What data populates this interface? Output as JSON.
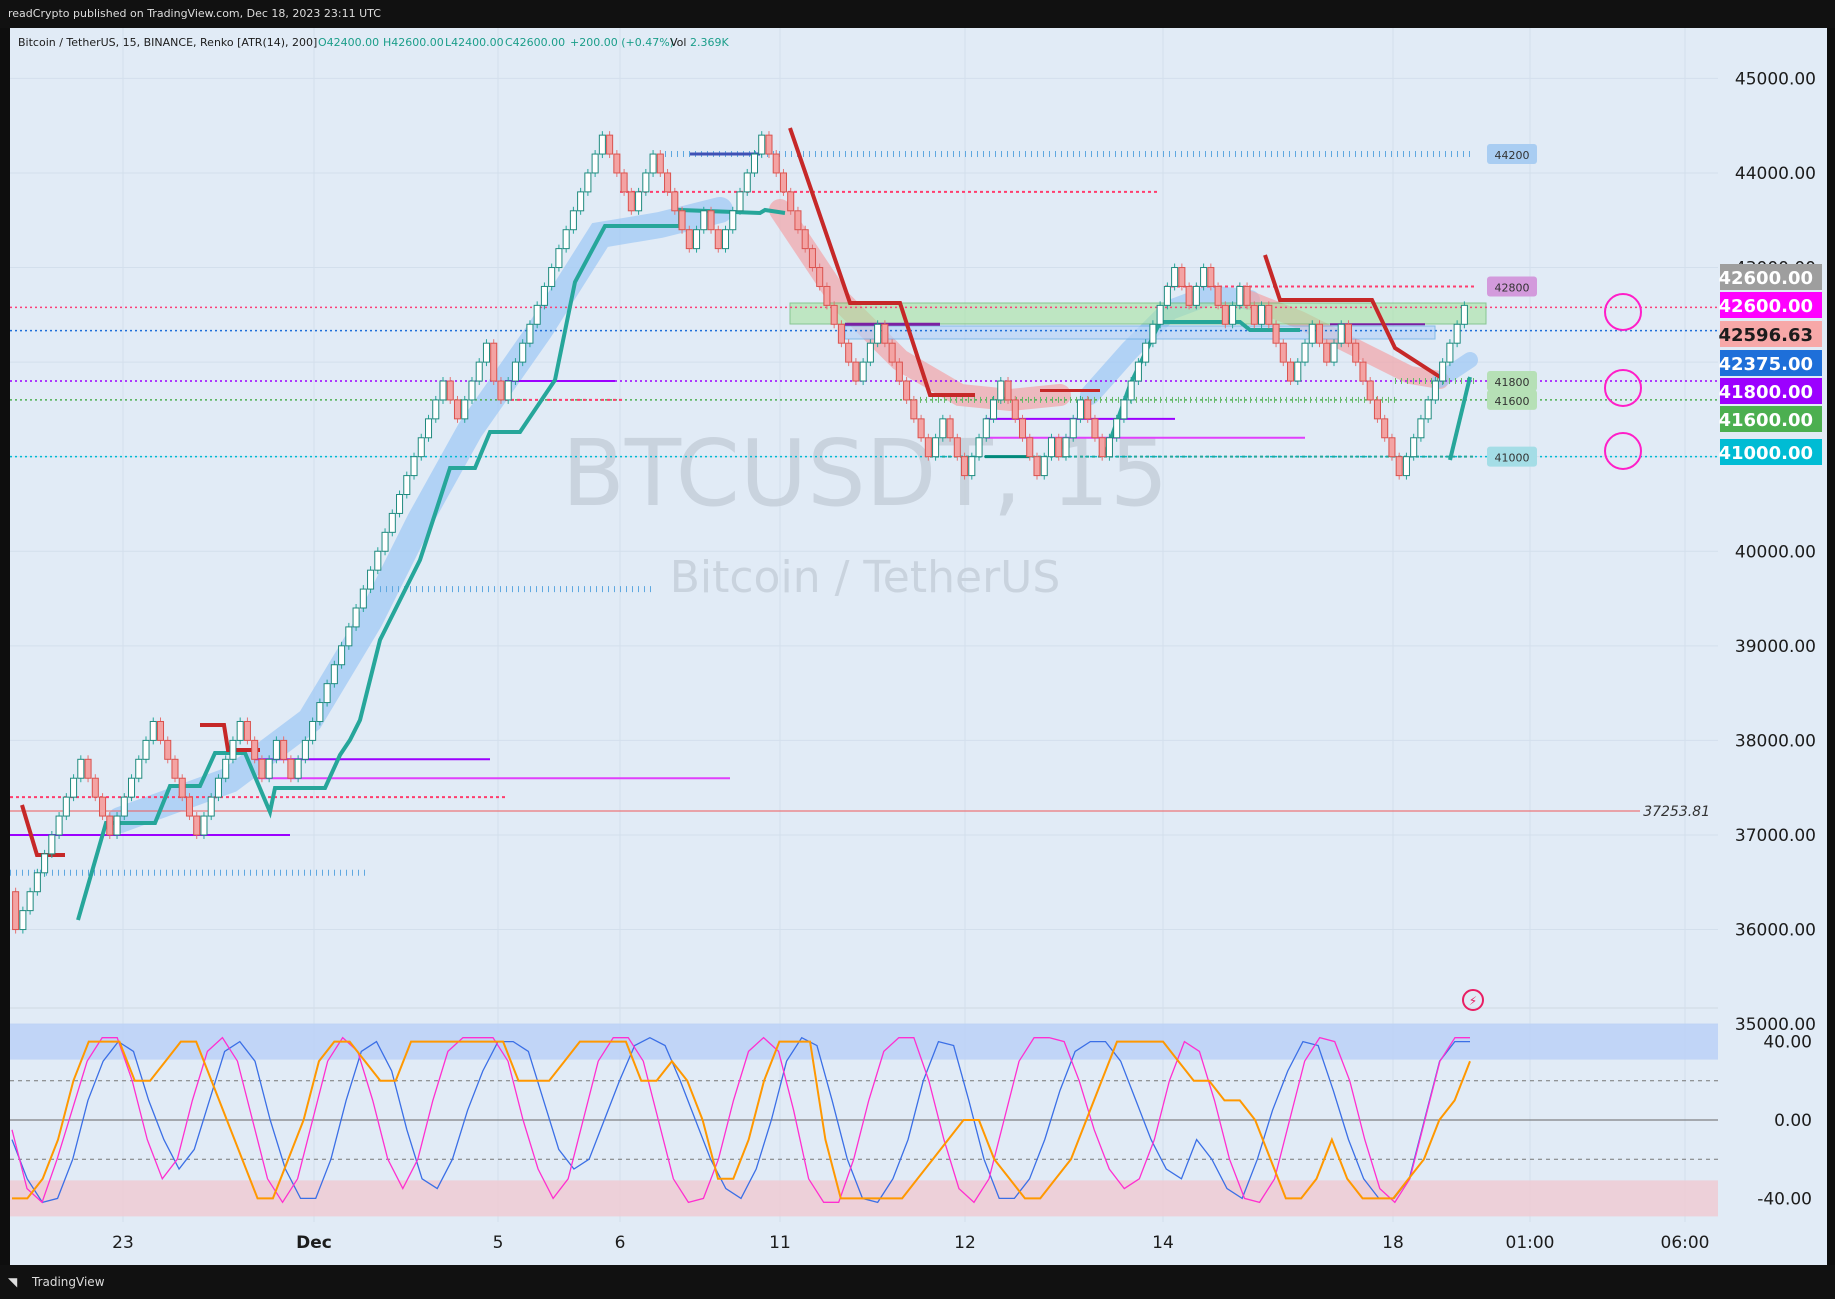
{
  "header": {
    "published": "readCrypto published on TradingView.com, Dec 18, 2023 23:11 UTC"
  },
  "legend": {
    "symbol": "Bitcoin / TetherUS, 15, BINANCE, Renko [ATR(14), 200]",
    "open": "O42400.00",
    "high": "H42600.00",
    "low": "L42400.00",
    "close": "C42600.00",
    "change": "+200.00 (+0.47%)",
    "volume_label": "Vol",
    "volume": "2.369K"
  },
  "watermark": {
    "ticker": "BTCUSDT, 15",
    "name": "Bitcoin / TetherUS"
  },
  "footer": {
    "brand": "TradingView"
  },
  "colors": {
    "up": "#26a69a",
    "down": "#ef5350",
    "bg": "#e1ebf6",
    "blue_level": "#5fa8e0",
    "pink_level": "#ff3d6d",
    "purple": "#9c27b0",
    "magenta": "#e040fb"
  },
  "chart_data": [
    {
      "type": "line",
      "title": "Bitcoin / TetherUS, 15, BINANCE, Renko [ATR(14), 200]",
      "x_ticks": [
        "23",
        "Dec",
        "5",
        "6",
        "11",
        "12",
        "14",
        "18",
        "01:00",
        "06:00"
      ],
      "y_ticks": [
        "35000.00",
        "36000.00",
        "37000.00",
        "38000.00",
        "39000.00",
        "40000.00",
        "41000.00",
        "42000.00",
        "43000.00",
        "44000.00",
        "45000.00"
      ],
      "ylim": [
        34980,
        45480
      ],
      "renko_brick_size": 200,
      "renko_path": [
        36400,
        36000,
        36200,
        36400,
        36600,
        36800,
        37000,
        37200,
        37400,
        37600,
        37800,
        37600,
        37400,
        37200,
        37000,
        37200,
        37400,
        37600,
        37800,
        38000,
        38200,
        38000,
        37800,
        37600,
        37400,
        37200,
        37000,
        37200,
        37400,
        37600,
        37800,
        38000,
        38200,
        38000,
        37800,
        37600,
        37800,
        38000,
        37800,
        37600,
        37800,
        38000,
        38200,
        38400,
        38600,
        38800,
        39000,
        39200,
        39400,
        39600,
        39800,
        40000,
        40200,
        40400,
        40600,
        40800,
        41000,
        41200,
        41400,
        41600,
        41800,
        41600,
        41400,
        41600,
        41800,
        42000,
        42200,
        41800,
        41600,
        41800,
        42000,
        42200,
        42400,
        42600,
        42800,
        43000,
        43200,
        43400,
        43600,
        43800,
        44000,
        44200,
        44400,
        44200,
        44000,
        43800,
        43600,
        43800,
        44000,
        44200,
        44000,
        43800,
        43600,
        43400,
        43200,
        43400,
        43600,
        43400,
        43200,
        43400,
        43600,
        43800,
        44000,
        44200,
        44400,
        44200,
        44000,
        43800,
        43600,
        43400,
        43200,
        43000,
        42800,
        42600,
        42400,
        42200,
        42000,
        41800,
        42000,
        42200,
        42400,
        42200,
        42000,
        41800,
        41600,
        41400,
        41200,
        41000,
        41200,
        41400,
        41200,
        41000,
        40800,
        41000,
        41200,
        41400,
        41600,
        41800,
        41600,
        41400,
        41200,
        41000,
        40800,
        41000,
        41200,
        41000,
        41200,
        41400,
        41600,
        41400,
        41200,
        41000,
        41200,
        41400,
        41600,
        41800,
        42000,
        42200,
        42400,
        42600,
        42800,
        43000,
        42800,
        42600,
        42800,
        43000,
        42800,
        42600,
        42400,
        42600,
        42800,
        42600,
        42400,
        42600,
        42400,
        42200,
        42000,
        41800,
        42000,
        42200,
        42400,
        42200,
        42000,
        42200,
        42400,
        42200,
        42000,
        41800,
        41600,
        41400,
        41200,
        41000,
        40800,
        41000,
        41200,
        41400,
        41600,
        41800,
        42000,
        42200,
        42400,
        42600
      ],
      "horizontal_levels": [
        {
          "price": 44200,
          "label": "44200",
          "style": "dots-blue"
        },
        {
          "price": 42800,
          "label": "42800",
          "style": "plus-pink"
        },
        {
          "price": 41800,
          "label": "41800",
          "style": "dots-green"
        },
        {
          "price": 41600,
          "label": "41600",
          "style": "dots-green"
        },
        {
          "price": 41000,
          "label": "41000",
          "style": "plus-teal"
        },
        {
          "price": 37253.81,
          "label": "37253.81",
          "style": "thin-red"
        }
      ],
      "price_labels": [
        {
          "value": "42600.00",
          "color": "#9e9e9e"
        },
        {
          "value": "42600.00",
          "color": "#ff00ff"
        },
        {
          "value": "42596.63",
          "color": "#f7a8a8"
        },
        {
          "value": "42375.00",
          "color": "#1e6fd9"
        },
        {
          "value": "41800.00",
          "color": "#9c00ff"
        },
        {
          "value": "41600.00",
          "color": "#4caf50"
        },
        {
          "value": "41000.00",
          "color": "#00bcd4"
        }
      ]
    },
    {
      "type": "line",
      "title": "",
      "y_ticks": [
        "40.00",
        "0.00",
        "-40.00"
      ],
      "ylim": [
        -50,
        50
      ],
      "series": [
        {
          "values": [
            -10,
            -30,
            -42,
            -40,
            -20,
            10,
            30,
            40,
            35,
            10,
            -10,
            -25,
            -15,
            10,
            35,
            40,
            30,
            0,
            -25,
            -40,
            -40,
            -20,
            10,
            35,
            40,
            25,
            -5,
            -30,
            -35,
            -20,
            5,
            25,
            40,
            40,
            35,
            10,
            -15,
            -25,
            -20,
            0,
            20,
            38,
            42,
            38,
            20,
            0,
            -20,
            -35,
            -40,
            -25,
            0,
            30,
            42,
            38,
            10,
            -20,
            -40,
            -42,
            -30,
            -10,
            20,
            40,
            38,
            10,
            -20,
            -40,
            -40,
            -30,
            -10,
            15,
            35,
            40,
            40,
            30,
            10,
            -10,
            -25,
            -30,
            -10,
            -20,
            -35,
            -40,
            -20,
            5,
            25,
            40,
            38,
            15,
            -10,
            -30,
            -40,
            -40,
            -30,
            0,
            30,
            40,
            40
          ]
        },
        {
          "values": [
            -5,
            -35,
            -42,
            -20,
            5,
            30,
            42,
            42,
            20,
            -10,
            -30,
            -20,
            10,
            35,
            42,
            30,
            0,
            -30,
            -42,
            -30,
            0,
            30,
            42,
            35,
            10,
            -20,
            -35,
            -20,
            10,
            35,
            42,
            42,
            42,
            30,
            0,
            -25,
            -40,
            -30,
            0,
            30,
            42,
            42,
            30,
            0,
            -30,
            -42,
            -40,
            -20,
            10,
            35,
            42,
            35,
            5,
            -30,
            -42,
            -42,
            -20,
            10,
            35,
            42,
            42,
            20,
            -10,
            -35,
            -42,
            -30,
            0,
            30,
            42,
            42,
            40,
            20,
            -5,
            -25,
            -35,
            -30,
            -10,
            20,
            40,
            35,
            10,
            -20,
            -40,
            -42,
            -30,
            0,
            30,
            42,
            40,
            20,
            -10,
            -35,
            -42,
            -30,
            0,
            30,
            42,
            42
          ]
        },
        {
          "values": [
            -40,
            -40,
            -30,
            -10,
            20,
            40,
            40,
            40,
            20,
            20,
            30,
            40,
            40,
            20,
            0,
            -20,
            -40,
            -40,
            -20,
            0,
            30,
            40,
            40,
            30,
            20,
            20,
            40,
            40,
            40,
            40,
            40,
            40,
            40,
            20,
            20,
            20,
            30,
            40,
            40,
            40,
            40,
            20,
            20,
            30,
            20,
            0,
            -30,
            -30,
            -10,
            20,
            40,
            40,
            40,
            -10,
            -40,
            -40,
            -40,
            -40,
            -40,
            -30,
            -20,
            -10,
            0,
            0,
            -20,
            -30,
            -40,
            -40,
            -30,
            -20,
            0,
            20,
            40,
            40,
            40,
            40,
            30,
            20,
            20,
            10,
            10,
            0,
            -20,
            -40,
            -40,
            -30,
            -10,
            -30,
            -40,
            -40,
            -40,
            -30,
            -20,
            0,
            10,
            30
          ]
        }
      ]
    }
  ]
}
